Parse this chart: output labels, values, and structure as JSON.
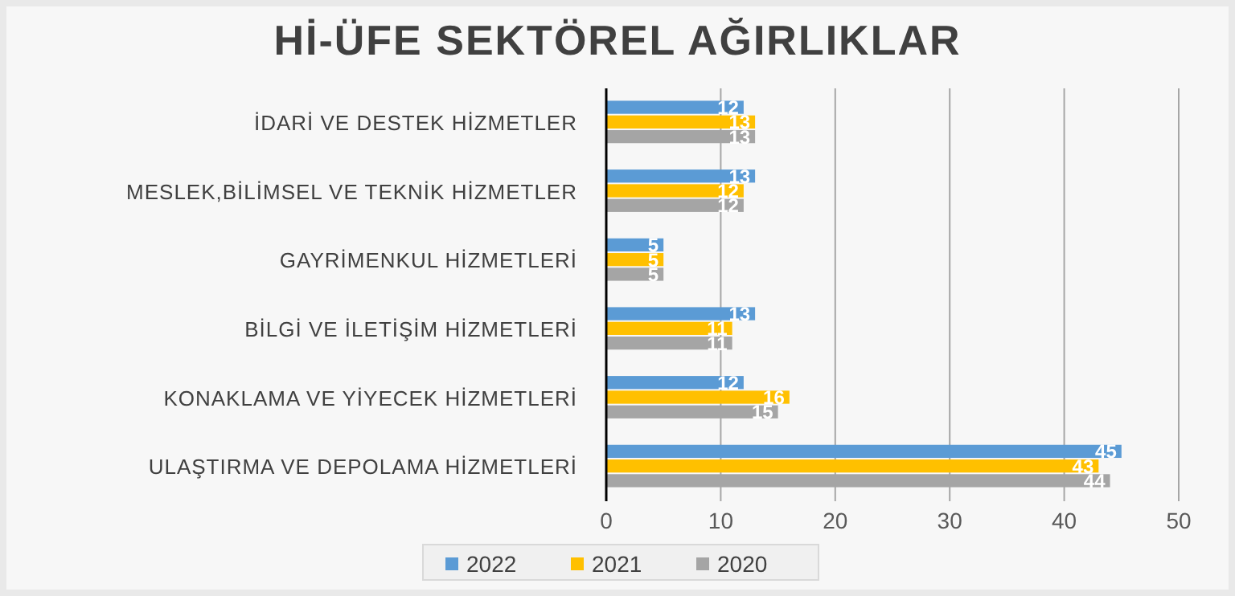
{
  "chart_data": {
    "type": "bar",
    "orientation": "horizontal",
    "title": "Hİ-ÜFE SEKTÖREL AĞIRLIKLAR",
    "categories": [
      "İDARİ VE DESTEK HİZMETLER",
      "MESLEK,BİLİMSEL VE TEKNİK HİZMETLER",
      "GAYRİMENKUL HİZMETLERİ",
      "BİLGİ VE İLETİŞİM HİZMETLERİ",
      "KONAKLAMA VE YİYECEK HİZMETLERİ",
      "ULAŞTIRMA VE DEPOLAMA HİZMETLERİ"
    ],
    "series": [
      {
        "name": "2022",
        "color": "#5b9bd5",
        "values": [
          12,
          13,
          5,
          13,
          12,
          45
        ]
      },
      {
        "name": "2021",
        "color": "#ffc000",
        "values": [
          13,
          12,
          5,
          11,
          16,
          43
        ]
      },
      {
        "name": "2020",
        "color": "#a5a5a5",
        "values": [
          13,
          12,
          5,
          11,
          15,
          44
        ]
      }
    ],
    "xlim": [
      0,
      50
    ],
    "xticks": [
      0,
      10,
      20,
      30,
      40,
      50
    ],
    "grid": "x",
    "legend": "bottom",
    "data_labels": true
  }
}
